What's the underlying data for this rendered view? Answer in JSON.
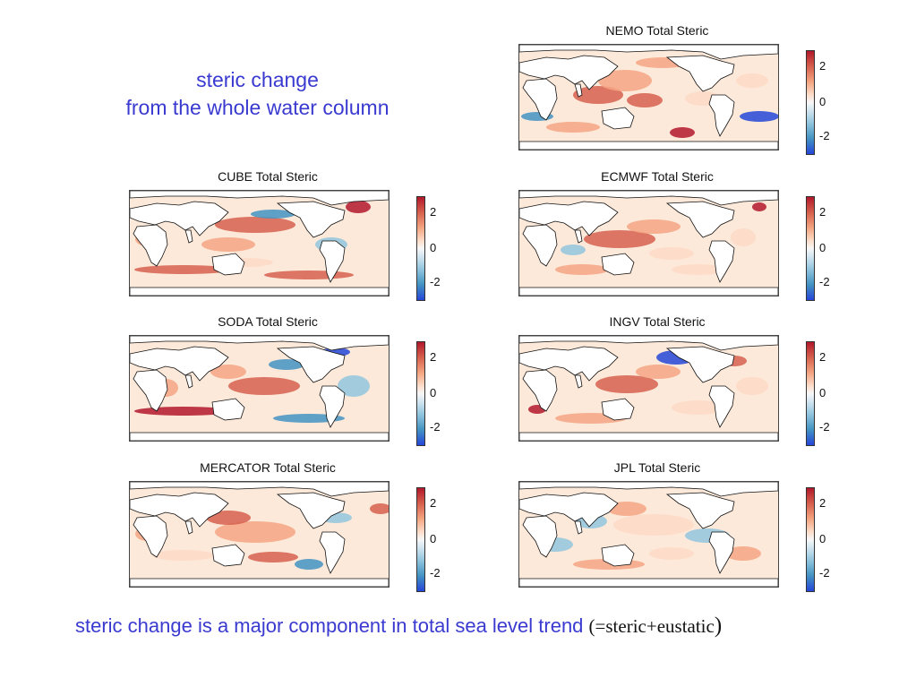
{
  "headline": {
    "line1": "steric change",
    "line2": "from the whole water column"
  },
  "footer": {
    "main": "steric change is a major component in total sea level trend",
    "formula": "(=steric+eustatic",
    "close": ")"
  },
  "colors": {
    "headline": "#3a3ad0",
    "positive": "#b2182b",
    "negative": "#2546d8",
    "neutral": "#f7f7f7"
  },
  "chart_data": [
    {
      "type": "heatmap",
      "title": "NEMO Total Steric",
      "colorbar_ticks": [
        "2",
        "0",
        "-2"
      ]
    },
    {
      "type": "heatmap",
      "title": "CUBE Total Steric",
      "colorbar_ticks": [
        "2",
        "0",
        "-2"
      ]
    },
    {
      "type": "heatmap",
      "title": "ECMWF Total Steric",
      "colorbar_ticks": [
        "2",
        "0",
        "-2"
      ]
    },
    {
      "type": "heatmap",
      "title": "SODA Total Steric",
      "colorbar_ticks": [
        "2",
        "0",
        "-2"
      ]
    },
    {
      "type": "heatmap",
      "title": "INGV Total Steric",
      "colorbar_ticks": [
        "2",
        "0",
        "-2"
      ]
    },
    {
      "type": "heatmap",
      "title": "MERCATOR Total Steric",
      "colorbar_ticks": [
        "2",
        "0",
        "-2"
      ]
    },
    {
      "type": "heatmap",
      "title": "JPL Total Steric",
      "colorbar_ticks": [
        "2",
        "0",
        "-2"
      ]
    }
  ]
}
